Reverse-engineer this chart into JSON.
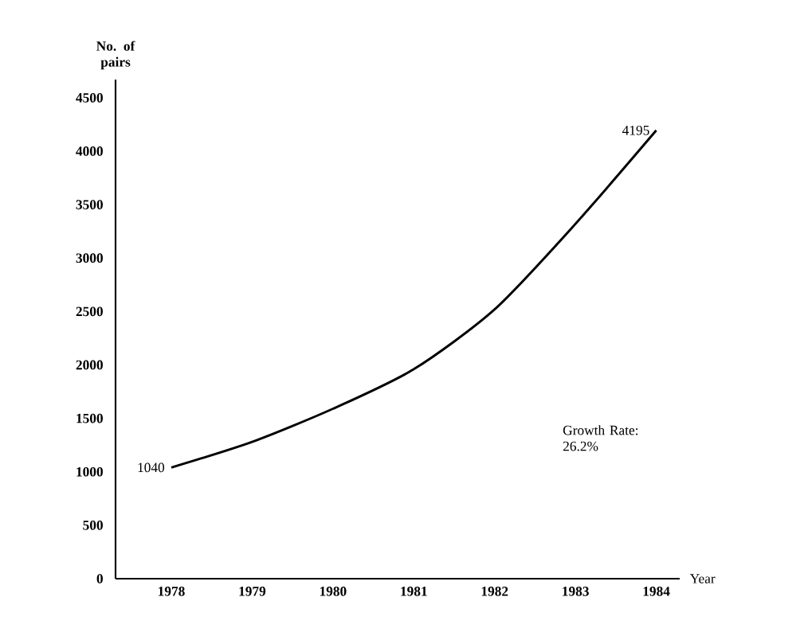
{
  "chart_data": {
    "type": "line",
    "xlabel": "Year",
    "ylabel": "No. of pairs",
    "x": [
      1978,
      1979,
      1980,
      1981,
      1982,
      1983,
      1984
    ],
    "series": [
      {
        "color": "#000000",
        "values": [
          1040,
          1280,
          1590,
          1960,
          2520,
          3320,
          4195
        ],
        "value_labels": [
          "1040",
          null,
          null,
          null,
          null,
          null,
          "4195"
        ]
      }
    ],
    "xlim": [
      1977.31,
      1984.29
    ],
    "ylim": [
      0,
      4670
    ],
    "xticks": [
      1978,
      1979,
      1980,
      1981,
      1982,
      1983,
      1984
    ],
    "yticks": [
      0,
      500,
      1000,
      1500,
      2000,
      2500,
      3000,
      3500,
      4000,
      4500
    ],
    "annotations": [
      "Growth Rate: 26.2%"
    ],
    "grid": false,
    "marker": "none",
    "line_style": "solid"
  }
}
